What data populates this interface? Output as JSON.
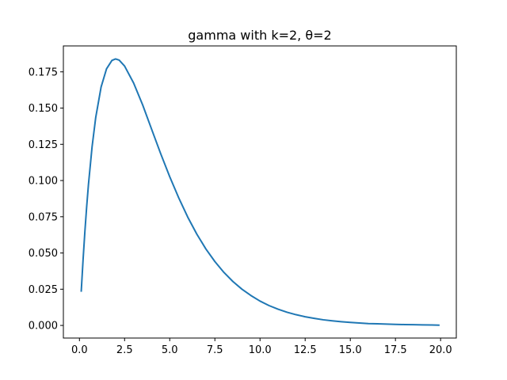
{
  "chart_data": {
    "type": "line",
    "title": "gamma with k=2, θ=2",
    "xlabel": "",
    "ylabel": "",
    "xlim": [
      -0.89,
      20.87
    ],
    "ylim": [
      -0.0087,
      0.1929
    ],
    "grid": false,
    "xticks": [
      0.0,
      2.5,
      5.0,
      7.5,
      10.0,
      12.5,
      15.0,
      17.5,
      20.0
    ],
    "xtick_labels": [
      "0.0",
      "2.5",
      "5.0",
      "7.5",
      "10.0",
      "12.5",
      "15.0",
      "17.5",
      "20.0"
    ],
    "yticks": [
      0.0,
      0.025,
      0.05,
      0.075,
      0.1,
      0.125,
      0.15,
      0.175
    ],
    "ytick_labels": [
      "0.000",
      "0.025",
      "0.050",
      "0.075",
      "0.100",
      "0.125",
      "0.150",
      "0.175"
    ],
    "series": [
      {
        "color": "#1f77b4",
        "x": [
          0.1,
          0.2,
          0.3,
          0.4,
          0.5,
          0.7,
          0.9,
          1.2,
          1.5,
          1.8,
          2.0,
          2.2,
          2.5,
          3.0,
          3.5,
          4.0,
          4.5,
          5.0,
          5.5,
          6.0,
          6.5,
          7.0,
          7.5,
          8.0,
          8.5,
          9.0,
          9.5,
          10.0,
          10.5,
          11.0,
          11.5,
          12.0,
          12.5,
          13.0,
          13.5,
          14.0,
          14.5,
          15.0,
          15.5,
          16.0,
          16.5,
          17.0,
          17.5,
          18.0,
          18.5,
          19.0,
          19.5,
          19.9
        ],
        "y": [
          0.0238,
          0.0452,
          0.0646,
          0.0819,
          0.0974,
          0.1233,
          0.1434,
          0.1646,
          0.1771,
          0.1829,
          0.1839,
          0.1831,
          0.179,
          0.1673,
          0.1522,
          0.1353,
          0.1185,
          0.1026,
          0.088,
          0.0747,
          0.063,
          0.0528,
          0.0441,
          0.0366,
          0.0303,
          0.025,
          0.0206,
          0.0168,
          0.0137,
          0.0112,
          0.0091,
          0.0074,
          0.006,
          0.0049,
          0.0039,
          0.0032,
          0.0026,
          0.0021,
          0.0017,
          0.0013,
          0.0011,
          0.0009,
          0.0007,
          0.0006,
          0.0005,
          0.0004,
          0.0003,
          0.0002
        ]
      }
    ]
  }
}
